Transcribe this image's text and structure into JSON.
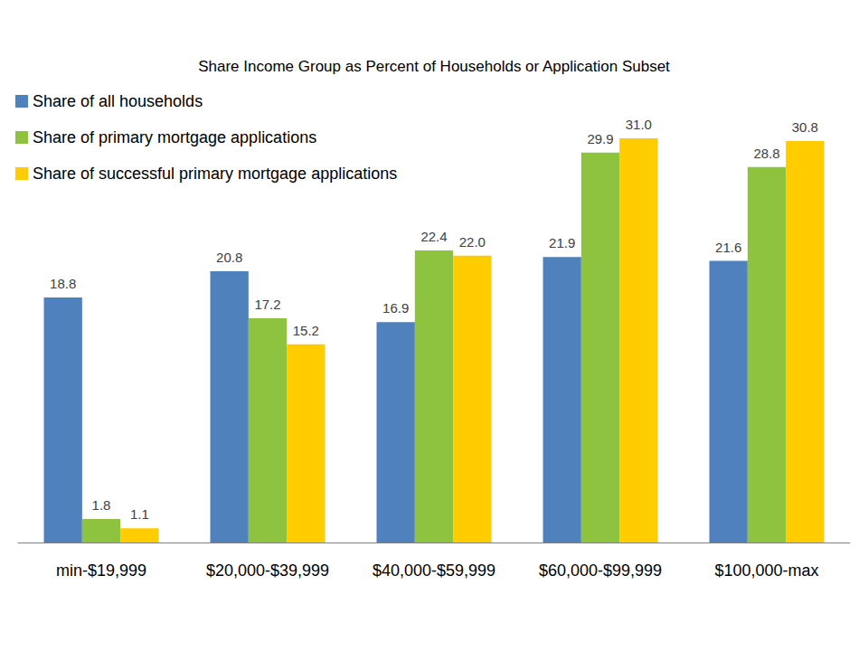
{
  "chart_data": {
    "type": "bar",
    "title": "Share Income Group as Percent of Households or Application Subset",
    "categories": [
      "min-$19,999",
      "$20,000-$39,999",
      "$40,000-$59,999",
      "$60,000-$99,999",
      "$100,000-max"
    ],
    "series": [
      {
        "name": "Share of all households",
        "color": "#4F81BD",
        "values": [
          18.8,
          20.8,
          16.9,
          21.9,
          21.6
        ],
        "value_labels": [
          "18.8",
          "20.8",
          "16.9",
          "21.9",
          "21.6"
        ]
      },
      {
        "name": "Share of primary mortgage applications",
        "color": "#8DC33E",
        "values": [
          1.8,
          17.2,
          22.4,
          29.9,
          28.8
        ],
        "value_labels": [
          "1.8",
          "17.2",
          "22.4",
          "29.9",
          "28.8"
        ]
      },
      {
        "name": "Share of successful primary mortgage applications",
        "color": "#FFCC00",
        "values": [
          1.1,
          15.2,
          22.0,
          31.0,
          30.8
        ],
        "value_labels": [
          "1.1",
          "15.2",
          "22.0",
          "31.0",
          "30.8"
        ]
      }
    ],
    "ylim": [
      0,
      31
    ],
    "grid": false,
    "legend": "top-left",
    "data_labels": true,
    "tick_labels": "x"
  }
}
